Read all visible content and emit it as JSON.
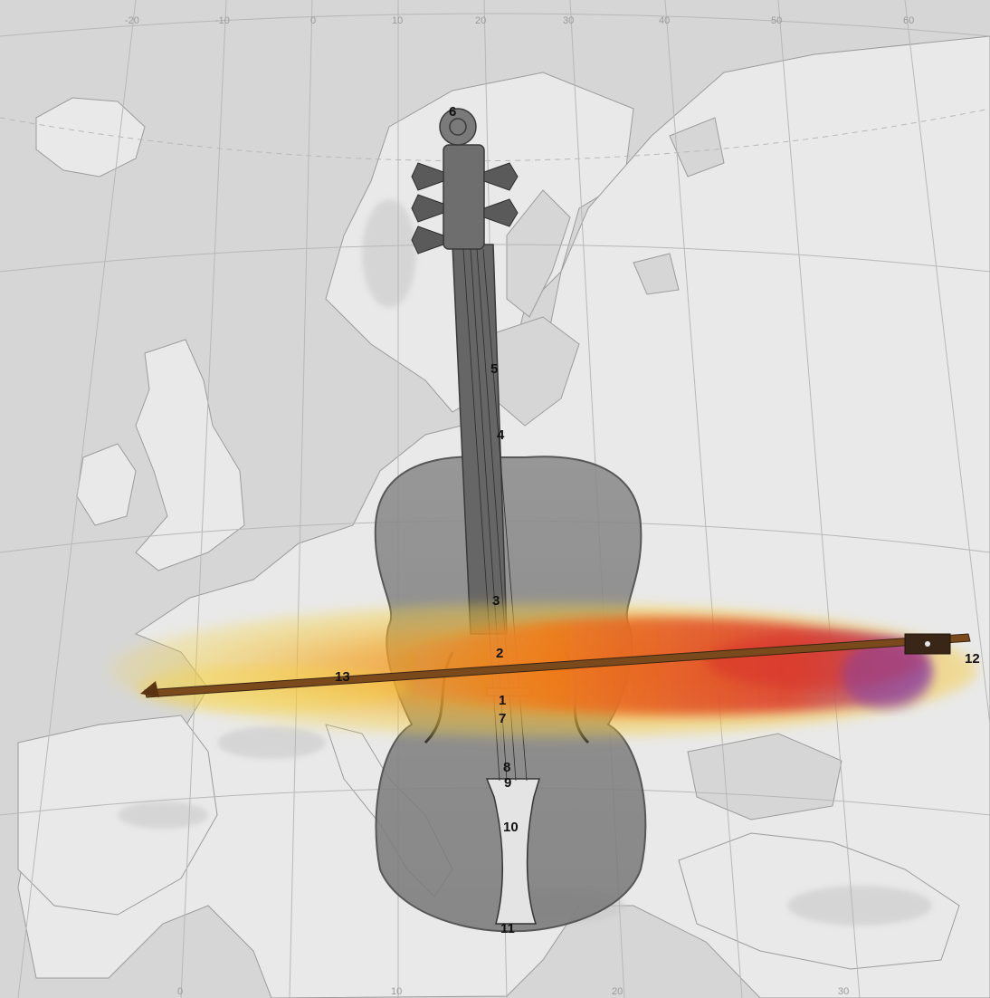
{
  "colors": {
    "sea": "#d6d6d6",
    "land": "#e9e9e9",
    "land_relief": "#c9c9c9",
    "graticule": "#b8b8b8",
    "violin_wood": "#8a8a8a",
    "violin_dark": "#555555",
    "bow": "#7a4a1c",
    "flame_orange": "#ef7a1a",
    "flame_yellow": "#f7d23a",
    "flame_red": "#d8322c",
    "flame_purple": "#8a3fa0"
  },
  "graticule_labels": {
    "top": [
      "-20",
      "-10",
      "0",
      "10",
      "20",
      "30",
      "40",
      "50",
      "60"
    ],
    "bottom": [
      "0",
      "10",
      "20",
      "30"
    ]
  },
  "violin_labels": [
    "1",
    "2",
    "3",
    "4",
    "5",
    "6",
    "7",
    "8",
    "9",
    "10",
    "11",
    "12",
    "13"
  ]
}
